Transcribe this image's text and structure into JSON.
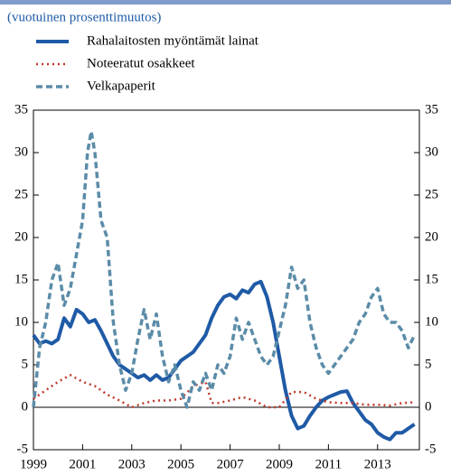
{
  "chart_data": {
    "type": "line",
    "subtitle": "(vuotuinen prosenttimuutos)",
    "xlim": [
      1999,
      2014.7
    ],
    "xticks": [
      1999,
      2001,
      2003,
      2005,
      2007,
      2009,
      2011,
      2013
    ],
    "ylim": [
      -5,
      35
    ],
    "yticks": [
      -5,
      0,
      5,
      10,
      15,
      20,
      25,
      30,
      35
    ],
    "y2lim": [
      -5,
      35
    ],
    "y2ticks": [
      -5,
      0,
      5,
      10,
      15,
      20,
      25,
      30,
      35
    ],
    "series": [
      {
        "name": "Rahalaitosten myöntämät lainat",
        "color": "#1f5aa6",
        "style": "solid",
        "x": [
          1999,
          1999.25,
          1999.5,
          1999.75,
          2000,
          2000.25,
          2000.5,
          2000.75,
          2001,
          2001.25,
          2001.5,
          2001.75,
          2002,
          2002.25,
          2002.5,
          2002.75,
          2003,
          2003.25,
          2003.5,
          2003.75,
          2004,
          2004.25,
          2004.5,
          2004.75,
          2005,
          2005.25,
          2005.5,
          2005.75,
          2006,
          2006.25,
          2006.5,
          2006.75,
          2007,
          2007.25,
          2007.5,
          2007.75,
          2008,
          2008.25,
          2008.5,
          2008.75,
          2009,
          2009.25,
          2009.5,
          2009.75,
          2010,
          2010.25,
          2010.5,
          2010.75,
          2011,
          2011.25,
          2011.5,
          2011.75,
          2012,
          2012.25,
          2012.5,
          2012.75,
          2013,
          2013.25,
          2013.5,
          2013.75,
          2014,
          2014.25,
          2014.5
        ],
        "values": [
          8.5,
          7.5,
          7.8,
          7.5,
          8,
          10.5,
          9.5,
          11.5,
          11,
          10,
          10.3,
          9,
          7.5,
          6,
          5,
          4.5,
          4,
          3.5,
          3.8,
          3.2,
          3.8,
          3.2,
          3.5,
          4.5,
          5.5,
          6,
          6.5,
          7.5,
          8.5,
          10.5,
          12,
          13,
          13.3,
          12.8,
          13.8,
          13.5,
          14.5,
          14.8,
          13,
          10,
          6,
          2,
          -1,
          -2.5,
          -2.2,
          -1,
          0,
          0.8,
          1.2,
          1.5,
          1.8,
          1.9,
          0.5,
          -0.5,
          -1.5,
          -2,
          -3,
          -3.5,
          -3.8,
          -3,
          -3,
          -2.5,
          -2
        ]
      },
      {
        "name": "Noteeratut osakkeet",
        "color": "#c0392b",
        "style": "dotted",
        "x": [
          1999,
          1999.5,
          2000,
          2000.5,
          2001,
          2001.5,
          2002,
          2002.5,
          2003,
          2003.5,
          2004,
          2004.5,
          2005,
          2005.5,
          2006,
          2006.25,
          2006.5,
          2007,
          2007.5,
          2008,
          2008.5,
          2009,
          2009.5,
          2010,
          2010.5,
          2011,
          2011.5,
          2012,
          2012.5,
          2013,
          2013.5,
          2014,
          2014.5
        ],
        "values": [
          1,
          2,
          3,
          3.8,
          3,
          2.5,
          1.5,
          0.8,
          0,
          0.5,
          0.8,
          0.8,
          1,
          2.5,
          3,
          0.5,
          0.5,
          0.8,
          1.2,
          0.8,
          0,
          0,
          1.8,
          1.8,
          1,
          0.6,
          0.5,
          0.5,
          0.3,
          0.3,
          0.2,
          0.5,
          0.6
        ]
      },
      {
        "name": "Velkapaperit",
        "color": "#5b8ca8",
        "style": "dashed",
        "x": [
          1999,
          1999.25,
          1999.5,
          1999.75,
          2000,
          2000.25,
          2000.5,
          2000.75,
          2001,
          2001.2,
          2001.35,
          2001.5,
          2001.75,
          2002,
          2002.25,
          2002.5,
          2002.75,
          2003,
          2003.25,
          2003.5,
          2003.75,
          2004,
          2004.25,
          2004.5,
          2004.75,
          2005,
          2005.25,
          2005.5,
          2005.75,
          2006,
          2006.25,
          2006.5,
          2006.75,
          2007,
          2007.25,
          2007.5,
          2007.75,
          2008,
          2008.25,
          2008.5,
          2008.75,
          2009,
          2009.25,
          2009.5,
          2009.75,
          2010,
          2010.25,
          2010.5,
          2010.75,
          2011,
          2011.25,
          2011.5,
          2011.75,
          2012,
          2012.25,
          2012.5,
          2012.75,
          2013,
          2013.25,
          2013.5,
          2013.75,
          2014,
          2014.25,
          2014.5
        ],
        "values": [
          0,
          7,
          10,
          15,
          17,
          12,
          14,
          18,
          22,
          30,
          32.5,
          30,
          22,
          20,
          10,
          5,
          2,
          4,
          8,
          11.5,
          8,
          11,
          6,
          3,
          5,
          2,
          0,
          3,
          2,
          4,
          2,
          5,
          4,
          6,
          10.5,
          8,
          10,
          8,
          6,
          5,
          6,
          9,
          12,
          16.5,
          14,
          15,
          10,
          7,
          5,
          4,
          5,
          6,
          7,
          8,
          10,
          11,
          13,
          14,
          11,
          10,
          10,
          9,
          7,
          8.5
        ]
      }
    ]
  }
}
